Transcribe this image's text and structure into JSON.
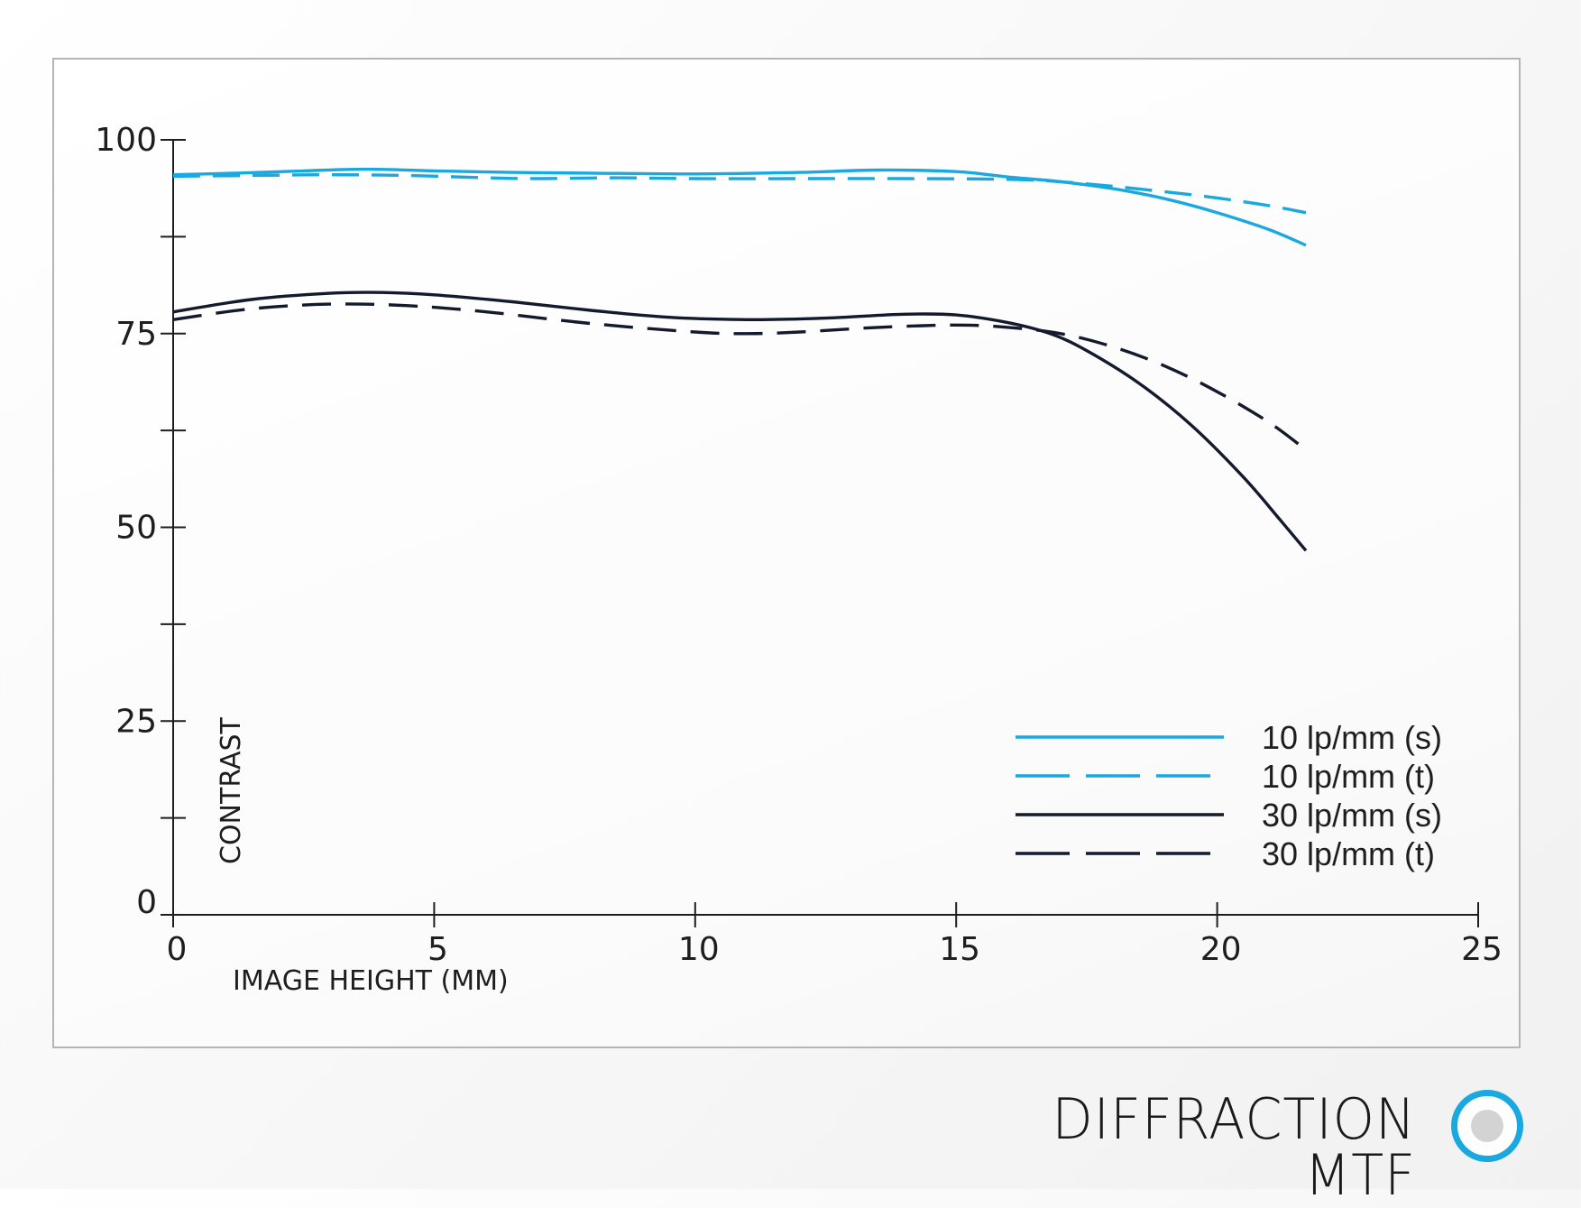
{
  "footer": {
    "title": "DIFFRACTION MTF"
  },
  "colors": {
    "blue": "#1aa8e0",
    "dark": "#141a2e",
    "frame": "#b5b5b5"
  },
  "chart_data": {
    "type": "line",
    "title": "",
    "xlabel": "IMAGE HEIGHT (MM)",
    "ylabel": "CONTRAST",
    "xlim": [
      0,
      25
    ],
    "ylim": [
      0,
      100
    ],
    "x_ticks": [
      0,
      5,
      10,
      15,
      20,
      25
    ],
    "y_ticks": [
      0,
      25,
      50,
      75,
      100
    ],
    "y_minor_ticks": [
      12.5,
      37.5,
      62.5,
      87.5
    ],
    "grid": false,
    "legend_position": "bottom-right",
    "series": [
      {
        "name": "10 lp/mm (s)",
        "color": "#1aa8e0",
        "dash": "solid",
        "x": [
          0,
          1.2,
          2.5,
          3.7,
          5,
          6.5,
          8,
          10,
          12,
          13.5,
          15,
          16,
          17,
          18,
          19,
          20,
          21,
          21.7
        ],
        "y": [
          95.5,
          95.7,
          96.0,
          96.2,
          96.0,
          95.8,
          95.7,
          95.6,
          95.8,
          96.1,
          95.9,
          95.2,
          94.6,
          93.7,
          92.4,
          90.6,
          88.4,
          86.4
        ]
      },
      {
        "name": "10 lp/mm (t)",
        "color": "#1aa8e0",
        "dash": "long",
        "x": [
          0,
          1.5,
          3,
          4.5,
          6,
          7,
          8.5,
          10,
          12,
          14,
          16,
          17,
          18,
          19,
          20,
          21,
          21.7
        ],
        "y": [
          95.3,
          95.4,
          95.5,
          95.4,
          95.1,
          95.0,
          95.1,
          95.0,
          95.0,
          95.0,
          94.9,
          94.6,
          94.0,
          93.3,
          92.5,
          91.5,
          90.6
        ]
      },
      {
        "name": "30 lp/mm (s)",
        "color": "#141a2e",
        "dash": "solid",
        "x": [
          0,
          1.5,
          3,
          4,
          5,
          6.5,
          8,
          9.5,
          11,
          12.5,
          14,
          15,
          16,
          16.8,
          17.5,
          18.5,
          19.5,
          20.5,
          21.2,
          21.7
        ],
        "y": [
          77.8,
          79.4,
          80.2,
          80.3,
          80.0,
          79.1,
          78.0,
          77.1,
          76.8,
          77.0,
          77.5,
          77.4,
          76.4,
          75.0,
          72.8,
          68.6,
          63.2,
          56.5,
          51.0,
          47.0
        ]
      },
      {
        "name": "30 lp/mm (t)",
        "color": "#141a2e",
        "dash": "long",
        "x": [
          0,
          1.5,
          3,
          4.5,
          6,
          8,
          10,
          11,
          12,
          13.5,
          15,
          16,
          17,
          18,
          19,
          20,
          21,
          21.7
        ],
        "y": [
          76.8,
          78.2,
          78.8,
          78.6,
          77.8,
          76.3,
          75.2,
          75.0,
          75.2,
          75.8,
          76.1,
          75.8,
          75.0,
          73.3,
          70.8,
          67.5,
          63.5,
          60.0
        ]
      }
    ]
  }
}
